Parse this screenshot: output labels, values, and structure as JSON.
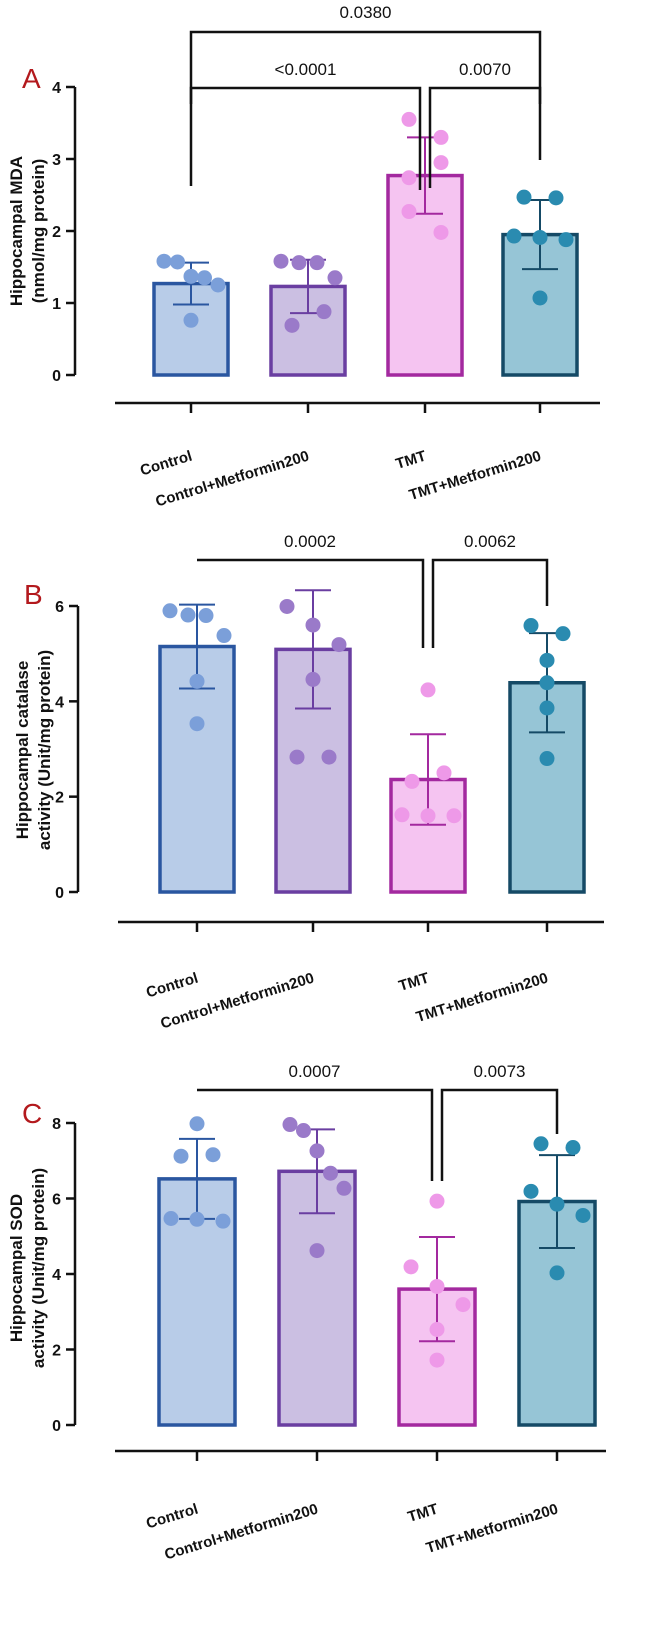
{
  "colors": {
    "fills": [
      "#b8cce8",
      "#cbbfe2",
      "#f5c4f1",
      "#96c5d6"
    ],
    "strokes": [
      "#2a56a0",
      "#6a3ea1",
      "#a3299f",
      "#154a66"
    ],
    "dots": [
      "#7b9fd9",
      "#9a7ac9",
      "#ee99e8",
      "#2a8bb0"
    ],
    "panel_label": "#b3191d"
  },
  "chart_data": [
    {
      "panel": "A",
      "type": "bar",
      "ylabel_lines": [
        "Hippocampal MDA",
        "(nmol/mg protein)"
      ],
      "categories": [
        "Control",
        "Control+Metformin200",
        "TMT",
        "TMT+Metformin200"
      ],
      "ylim": [
        0,
        4
      ],
      "yticks": [
        0,
        1,
        2,
        3,
        4
      ],
      "means": [
        1.27,
        1.23,
        2.77,
        1.95
      ],
      "sd": [
        0.29,
        0.37,
        0.53,
        0.48
      ],
      "points": [
        [
          1.57,
          1.58,
          1.37,
          1.35,
          1.25,
          0.76
        ],
        [
          1.58,
          1.56,
          1.56,
          1.35,
          0.88,
          0.69
        ],
        [
          3.55,
          3.3,
          2.95,
          2.74,
          2.27,
          1.98
        ],
        [
          2.47,
          2.46,
          1.93,
          1.88,
          1.91,
          1.07
        ]
      ],
      "comparisons": [
        {
          "from": 0,
          "to": 3,
          "label": "0.0380"
        },
        {
          "from": 0,
          "to": 2,
          "label": "<0.0001"
        },
        {
          "from": 2,
          "to": 3,
          "label": "0.0070"
        }
      ]
    },
    {
      "panel": "B",
      "type": "bar",
      "ylabel_lines": [
        "Hippocampal catalase",
        "activity (Unit/mg protein)"
      ],
      "categories": [
        "Control",
        "Control+Metformin200",
        "TMT",
        "TMT+Metformin200"
      ],
      "ylim": [
        0,
        6
      ],
      "yticks": [
        0,
        2,
        4,
        6
      ],
      "means": [
        5.15,
        5.09,
        2.36,
        4.39
      ],
      "sd": [
        0.88,
        1.24,
        0.95,
        1.04
      ],
      "points": [
        [
          5.8,
          5.9,
          5.81,
          5.38,
          4.42,
          3.53
        ],
        [
          5.99,
          5.6,
          5.19,
          4.46,
          2.83,
          2.83
        ],
        [
          4.24,
          2.5,
          2.32,
          1.6,
          1.6,
          1.62
        ],
        [
          5.59,
          5.42,
          4.86,
          4.39,
          3.86,
          2.8
        ]
      ],
      "comparisons": [
        {
          "from": 0,
          "to": 2,
          "label": "0.0002"
        },
        {
          "from": 2,
          "to": 3,
          "label": "0.0062"
        }
      ]
    },
    {
      "panel": "C",
      "type": "bar",
      "ylabel_lines": [
        "Hippocampal SOD",
        "activity (Unit/mg protein)"
      ],
      "categories": [
        "Control",
        "Control+Metformin200",
        "TMT",
        "TMT+Metformin200"
      ],
      "ylim": [
        0,
        8
      ],
      "yticks": [
        0,
        2,
        4,
        6,
        8
      ],
      "means": [
        6.52,
        6.72,
        3.6,
        5.92
      ],
      "sd": [
        1.06,
        1.11,
        1.38,
        1.23
      ],
      "points": [
        [
          7.98,
          7.16,
          7.12,
          5.4,
          5.47,
          5.45
        ],
        [
          7.96,
          7.8,
          7.26,
          6.67,
          6.27,
          4.62
        ],
        [
          5.93,
          4.19,
          3.67,
          3.19,
          2.53,
          1.72
        ],
        [
          7.45,
          7.35,
          6.19,
          5.85,
          5.55,
          4.03
        ]
      ],
      "comparisons": [
        {
          "from": 0,
          "to": 2,
          "label": "0.0007"
        },
        {
          "from": 2,
          "to": 3,
          "label": "0.0073"
        }
      ]
    }
  ]
}
